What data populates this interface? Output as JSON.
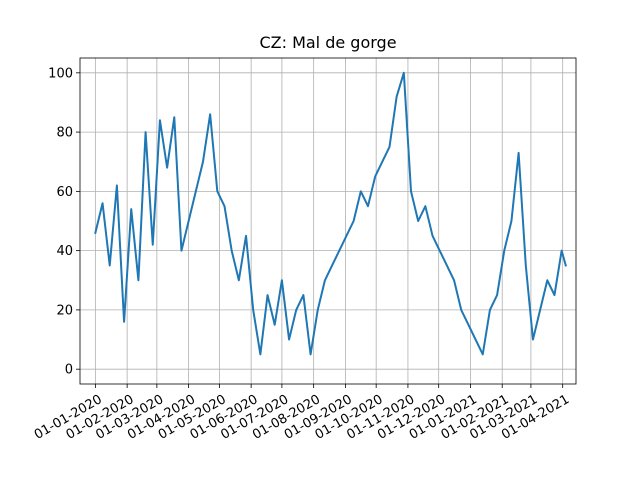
{
  "chart_data": {
    "type": "line",
    "title": "CZ: Mal de gorge",
    "xlabel": "",
    "ylabel": "",
    "xlim": [
      "2019-12-17",
      "2021-04-14"
    ],
    "ylim": [
      -5,
      105
    ],
    "grid": true,
    "x_tick_labels": [
      "01-01-2020",
      "01-02-2020",
      "01-03-2020",
      "01-04-2020",
      "01-05-2020",
      "01-06-2020",
      "01-07-2020",
      "01-08-2020",
      "01-09-2020",
      "01-10-2020",
      "01-11-2020",
      "01-12-2020",
      "01-01-2021",
      "01-02-2021",
      "01-03-2021",
      "01-04-2021"
    ],
    "y_ticks": [
      0,
      20,
      40,
      60,
      80,
      100
    ],
    "series": [
      {
        "color": "#1f77b4",
        "x": [
          "2020-01-01",
          "2020-01-08",
          "2020-01-15",
          "2020-01-22",
          "2020-01-29",
          "2020-02-05",
          "2020-02-12",
          "2020-02-19",
          "2020-02-26",
          "2020-03-04",
          "2020-03-11",
          "2020-03-18",
          "2020-03-25",
          "2020-04-01",
          "2020-04-08",
          "2020-04-15",
          "2020-04-22",
          "2020-04-29",
          "2020-05-06",
          "2020-05-13",
          "2020-05-20",
          "2020-05-27",
          "2020-06-03",
          "2020-06-10",
          "2020-06-17",
          "2020-06-24",
          "2020-07-01",
          "2020-07-08",
          "2020-07-15",
          "2020-07-22",
          "2020-07-29",
          "2020-08-05",
          "2020-08-12",
          "2020-08-19",
          "2020-08-26",
          "2020-09-02",
          "2020-09-09",
          "2020-09-16",
          "2020-09-23",
          "2020-09-30",
          "2020-10-07",
          "2020-10-14",
          "2020-10-21",
          "2020-10-28",
          "2020-11-04",
          "2020-11-11",
          "2020-11-18",
          "2020-11-25",
          "2020-12-02",
          "2020-12-09",
          "2020-12-16",
          "2020-12-23",
          "2020-12-30",
          "2021-01-06",
          "2021-01-13",
          "2021-01-20",
          "2021-01-27",
          "2021-02-03",
          "2021-02-10",
          "2021-02-17",
          "2021-02-24",
          "2021-03-03",
          "2021-03-10",
          "2021-03-17",
          "2021-03-24",
          "2021-03-31",
          "2021-04-04"
        ],
        "y": [
          46,
          56,
          35,
          62,
          16,
          54,
          30,
          80,
          42,
          84,
          68,
          85,
          40,
          50,
          60,
          70,
          86,
          60,
          55,
          40,
          30,
          45,
          20,
          5,
          25,
          15,
          30,
          10,
          20,
          25,
          5,
          20,
          30,
          35,
          40,
          45,
          50,
          60,
          55,
          65,
          70,
          75,
          92,
          100,
          60,
          50,
          55,
          45,
          40,
          35,
          30,
          20,
          15,
          10,
          5,
          20,
          25,
          40,
          50,
          73,
          35,
          10,
          20,
          30,
          25,
          40,
          35
        ]
      }
    ]
  }
}
